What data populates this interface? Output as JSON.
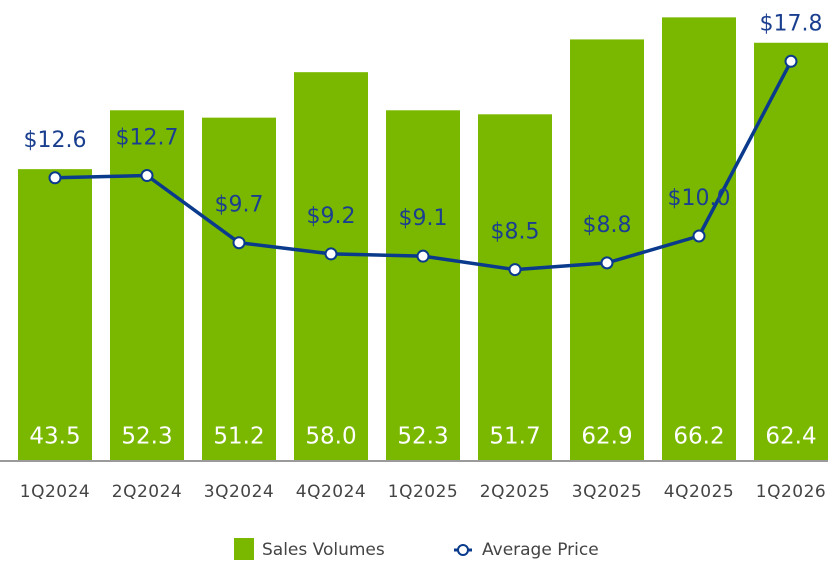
{
  "chart_data": {
    "type": "bar",
    "categories": [
      "1Q2024",
      "2Q2024",
      "3Q2024",
      "4Q2024",
      "1Q2025",
      "2Q2025",
      "3Q2025",
      "4Q2025",
      "1Q2026"
    ],
    "series": [
      {
        "name": "Sales Volumes",
        "type": "bar",
        "color": "#7ab800",
        "values": [
          43.5,
          52.3,
          51.2,
          58.0,
          52.3,
          51.7,
          62.9,
          66.2,
          62.4
        ],
        "value_labels": [
          "43.5",
          "52.3",
          "51.2",
          "58.0",
          "52.3",
          "51.7",
          "62.9",
          "66.2",
          "62.4"
        ]
      },
      {
        "name": "Average Price",
        "type": "line",
        "axis": "y2",
        "color": "#0a3a8c",
        "values": [
          12.6,
          12.7,
          9.7,
          9.2,
          9.1,
          8.5,
          8.8,
          10.0,
          17.8
        ],
        "value_labels": [
          "$12.6",
          "$12.7",
          "$9.7",
          "$9.2",
          "$9.1",
          "$8.5",
          "$8.8",
          "$10.0",
          "$17.8"
        ]
      }
    ],
    "ylim": [
      0,
      67
    ],
    "y2lim": [
      0,
      20
    ],
    "grid": false,
    "legend": "bottom"
  }
}
